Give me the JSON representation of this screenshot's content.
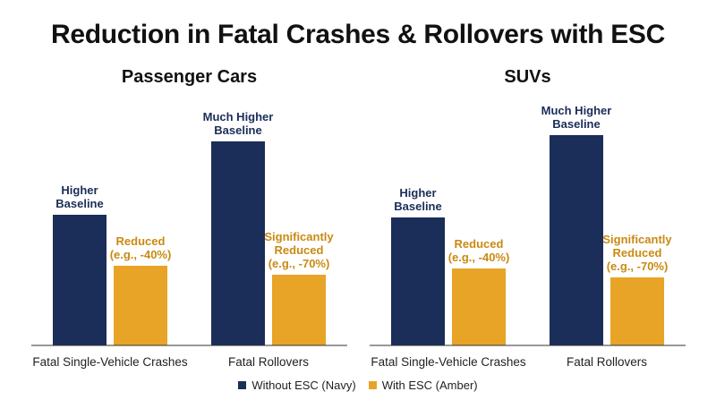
{
  "title": "Reduction in Fatal Crashes & Rollovers with ESC",
  "colors": {
    "navy": "#1b2d59",
    "amber": "#e8a427",
    "amber_text": "#c98a12",
    "axis": "#333333"
  },
  "legend": [
    {
      "name": "Without ESC (Navy)",
      "color": "#1b2d59"
    },
    {
      "name": "With ESC (Amber)",
      "color": "#e8a427"
    }
  ],
  "chart_data": [
    {
      "type": "bar",
      "title": "Passenger Cars",
      "categories": [
        "Fatal Single-Vehicle Crashes",
        "Fatal Rollovers"
      ],
      "series": [
        {
          "name": "Without ESC (Navy)",
          "values": [
            146,
            228
          ],
          "labels": [
            [
              "Higher",
              "Baseline"
            ],
            [
              "Much Higher",
              "Baseline"
            ]
          ]
        },
        {
          "name": "With ESC (Amber)",
          "values": [
            89,
            79
          ],
          "labels": [
            [
              "Reduced",
              "(e.g., -40%)"
            ],
            [
              "Significantly",
              "Reduced",
              "(e.g., -70%)"
            ]
          ]
        }
      ],
      "ylim": [
        0,
        260
      ],
      "grid": false,
      "legend": "bottom"
    },
    {
      "type": "bar",
      "title": "SUVs",
      "categories": [
        "Fatal Single-Vehicle Crashes",
        "Fatal Rollovers"
      ],
      "series": [
        {
          "name": "Without ESC (Navy)",
          "values": [
            143,
            235
          ],
          "labels": [
            [
              "Higher",
              "Baseline"
            ],
            [
              "Much Higher",
              "Baseline"
            ]
          ]
        },
        {
          "name": "With ESC (Amber)",
          "values": [
            86,
            76
          ],
          "labels": [
            [
              "Reduced",
              "(e.g., -40%)"
            ],
            [
              "Significantly",
              "Reduced",
              "(e.g., -70%)"
            ]
          ]
        }
      ],
      "ylim": [
        0,
        260
      ],
      "grid": false,
      "legend": "bottom"
    }
  ]
}
